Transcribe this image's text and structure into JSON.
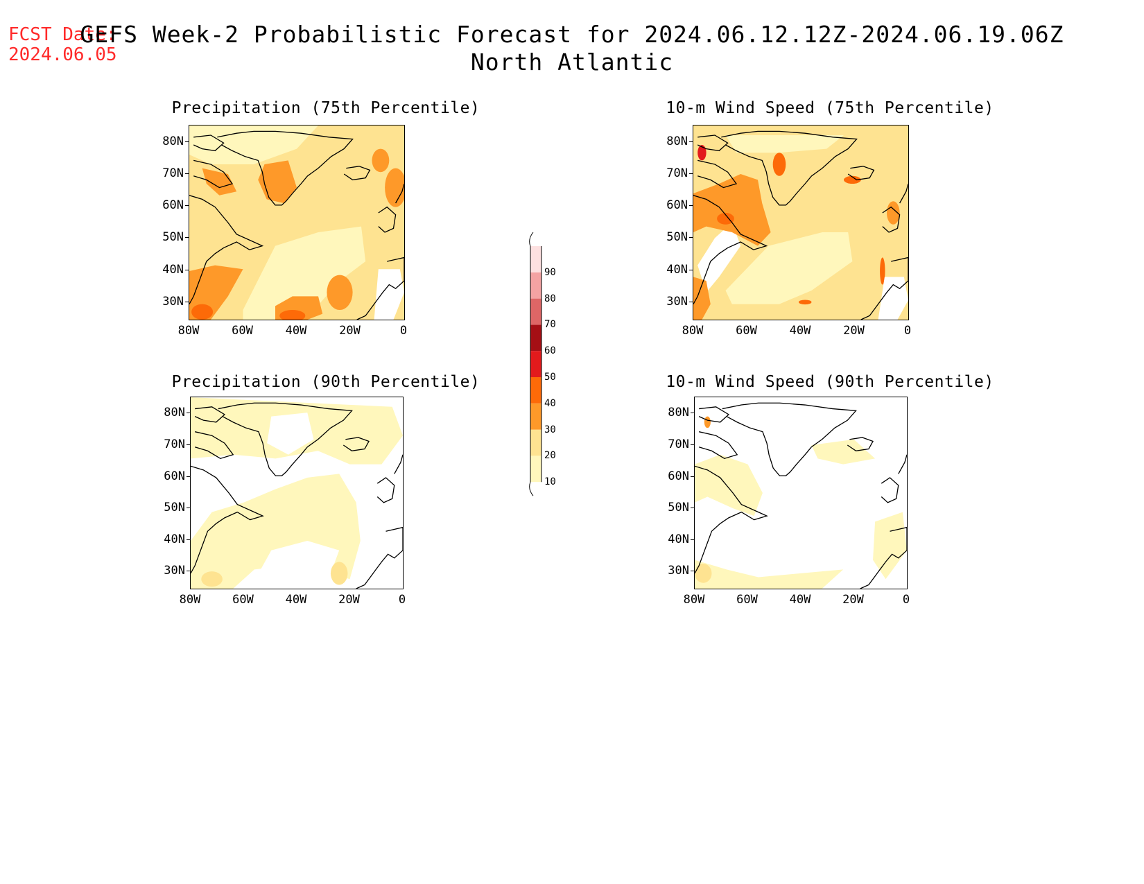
{
  "header": {
    "fcst_label": "FCST Date:",
    "fcst_date": "2024.06.05",
    "title_line1": "GEFS Week-2 Probabilistic Forecast for 2024.06.12.12Z-2024.06.19.06Z",
    "title_line2": "North Atlantic"
  },
  "panels": [
    {
      "title": "Precipitation (75th Percentile)"
    },
    {
      "title": "10-m Wind Speed (75th Percentile)"
    },
    {
      "title": "Precipitation (90th Percentile)"
    },
    {
      "title": "10-m Wind Speed (90th Percentile)"
    }
  ],
  "axes": {
    "lat_labels": [
      "80N",
      "70N",
      "60N",
      "50N",
      "40N",
      "30N"
    ],
    "lon_labels": [
      "80W",
      "60W",
      "40W",
      "20W",
      "0"
    ]
  },
  "colorbar": {
    "levels": [
      "10",
      "20",
      "30",
      "40",
      "50",
      "60",
      "70",
      "80",
      "90"
    ],
    "colors": [
      "#fff7bc",
      "#fee391",
      "#fe9929",
      "#fd6a08",
      "#e31a1c",
      "#a50f15",
      "#de6666",
      "#f4a3a3",
      "#fde0e0"
    ]
  }
}
